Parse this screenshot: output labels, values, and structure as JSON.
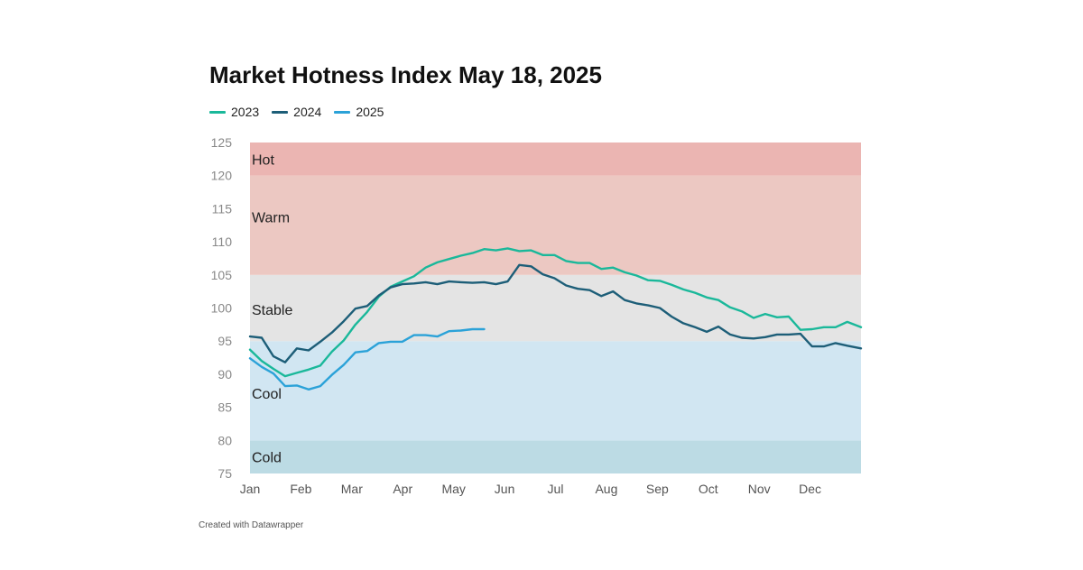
{
  "chart_data": {
    "type": "line",
    "title": "Market Hotness Index May 18, 2025",
    "xlabel": "",
    "ylabel": "",
    "ylim": [
      75,
      125
    ],
    "yticks": [
      75,
      80,
      85,
      90,
      95,
      100,
      105,
      110,
      115,
      120,
      125
    ],
    "xlim": [
      0,
      12
    ],
    "months": [
      "Jan",
      "Feb",
      "Mar",
      "Apr",
      "May",
      "Jun",
      "Jul",
      "Aug",
      "Sep",
      "Oct",
      "Nov",
      "Dec"
    ],
    "legend_position": "top-left",
    "grid": false,
    "bands": [
      {
        "label": "Cold",
        "from": 75,
        "to": 80,
        "color": "#bcdbe4"
      },
      {
        "label": "Cool",
        "from": 80,
        "to": 95,
        "color": "#d1e6f2"
      },
      {
        "label": "Stable",
        "from": 95,
        "to": 105,
        "color": "#e4e4e4"
      },
      {
        "label": "Warm",
        "from": 105,
        "to": 120,
        "color": "#ecc8c2"
      },
      {
        "label": "Hot",
        "from": 120,
        "to": 125,
        "color": "#ebb5b2"
      }
    ],
    "series": [
      {
        "name": "2023",
        "color": "#1ab89a",
        "x": [
          0,
          0.23,
          0.46,
          0.69,
          0.92,
          1.15,
          1.38,
          1.61,
          1.84,
          2.07,
          2.3,
          2.53,
          2.76,
          2.99,
          3.22,
          3.45,
          3.68,
          3.91,
          4.14,
          4.37,
          4.6,
          4.83,
          5.06,
          5.29,
          5.52,
          5.75,
          5.98,
          6.21,
          6.44,
          6.67,
          6.9,
          7.13,
          7.36,
          7.59,
          7.82,
          8.05,
          8.28,
          8.51,
          8.74,
          8.97,
          9.2,
          9.43,
          9.66,
          9.89,
          10.12,
          10.35,
          10.58,
          10.81,
          11.04,
          11.27,
          11.5,
          11.73,
          12.0
        ],
        "values": [
          93.7,
          92.0,
          90.8,
          89.7,
          90.2,
          90.7,
          91.3,
          93.4,
          95.1,
          97.5,
          99.4,
          101.7,
          103.2,
          104.0,
          104.8,
          106.1,
          106.9,
          107.4,
          107.9,
          108.3,
          108.9,
          108.7,
          109.0,
          108.6,
          108.7,
          108.0,
          108.0,
          107.1,
          106.8,
          106.8,
          105.9,
          106.1,
          105.4,
          104.9,
          104.2,
          104.1,
          103.5,
          102.8,
          102.3,
          101.6,
          101.2,
          100.1,
          99.5,
          98.5,
          99.1,
          98.6,
          98.7,
          96.7,
          96.8,
          97.1,
          97.1,
          97.9,
          97.1
        ]
      },
      {
        "name": "2024",
        "color": "#1d5e78",
        "x": [
          0,
          0.23,
          0.46,
          0.69,
          0.92,
          1.15,
          1.38,
          1.61,
          1.84,
          2.07,
          2.3,
          2.53,
          2.76,
          2.99,
          3.22,
          3.45,
          3.68,
          3.91,
          4.14,
          4.37,
          4.6,
          4.83,
          5.06,
          5.29,
          5.52,
          5.75,
          5.98,
          6.21,
          6.44,
          6.67,
          6.9,
          7.13,
          7.36,
          7.59,
          7.82,
          8.05,
          8.28,
          8.51,
          8.74,
          8.97,
          9.2,
          9.43,
          9.66,
          9.89,
          10.12,
          10.35,
          10.58,
          10.81,
          11.04,
          11.27,
          11.5,
          11.73,
          12.0
        ],
        "values": [
          95.7,
          95.5,
          92.7,
          91.8,
          93.9,
          93.6,
          94.9,
          96.3,
          98.0,
          99.9,
          100.3,
          101.9,
          103.1,
          103.6,
          103.7,
          103.9,
          103.6,
          104.0,
          103.9,
          103.8,
          103.9,
          103.6,
          104.0,
          106.5,
          106.3,
          105.1,
          104.5,
          103.4,
          102.9,
          102.7,
          101.8,
          102.5,
          101.2,
          100.7,
          100.4,
          100.0,
          98.7,
          97.7,
          97.1,
          96.4,
          97.2,
          96.0,
          95.5,
          95.4,
          95.6,
          96.0,
          96.0,
          96.1,
          94.2,
          94.2,
          94.7,
          94.3,
          93.9
        ]
      },
      {
        "name": "2025",
        "color": "#2ba2d8",
        "x": [
          0,
          0.23,
          0.46,
          0.69,
          0.92,
          1.15,
          1.38,
          1.61,
          1.84,
          2.07,
          2.3,
          2.53,
          2.76,
          2.99,
          3.22,
          3.45,
          3.68,
          3.91,
          4.14,
          4.37,
          4.6
        ],
        "values": [
          92.4,
          91.1,
          90.1,
          88.2,
          88.3,
          87.7,
          88.2,
          89.9,
          91.4,
          93.3,
          93.5,
          94.7,
          94.9,
          94.9,
          95.9,
          95.9,
          95.7,
          96.5,
          96.6,
          96.8,
          96.8
        ]
      }
    ]
  },
  "footer": {
    "credit": "Created with Datawrapper"
  }
}
